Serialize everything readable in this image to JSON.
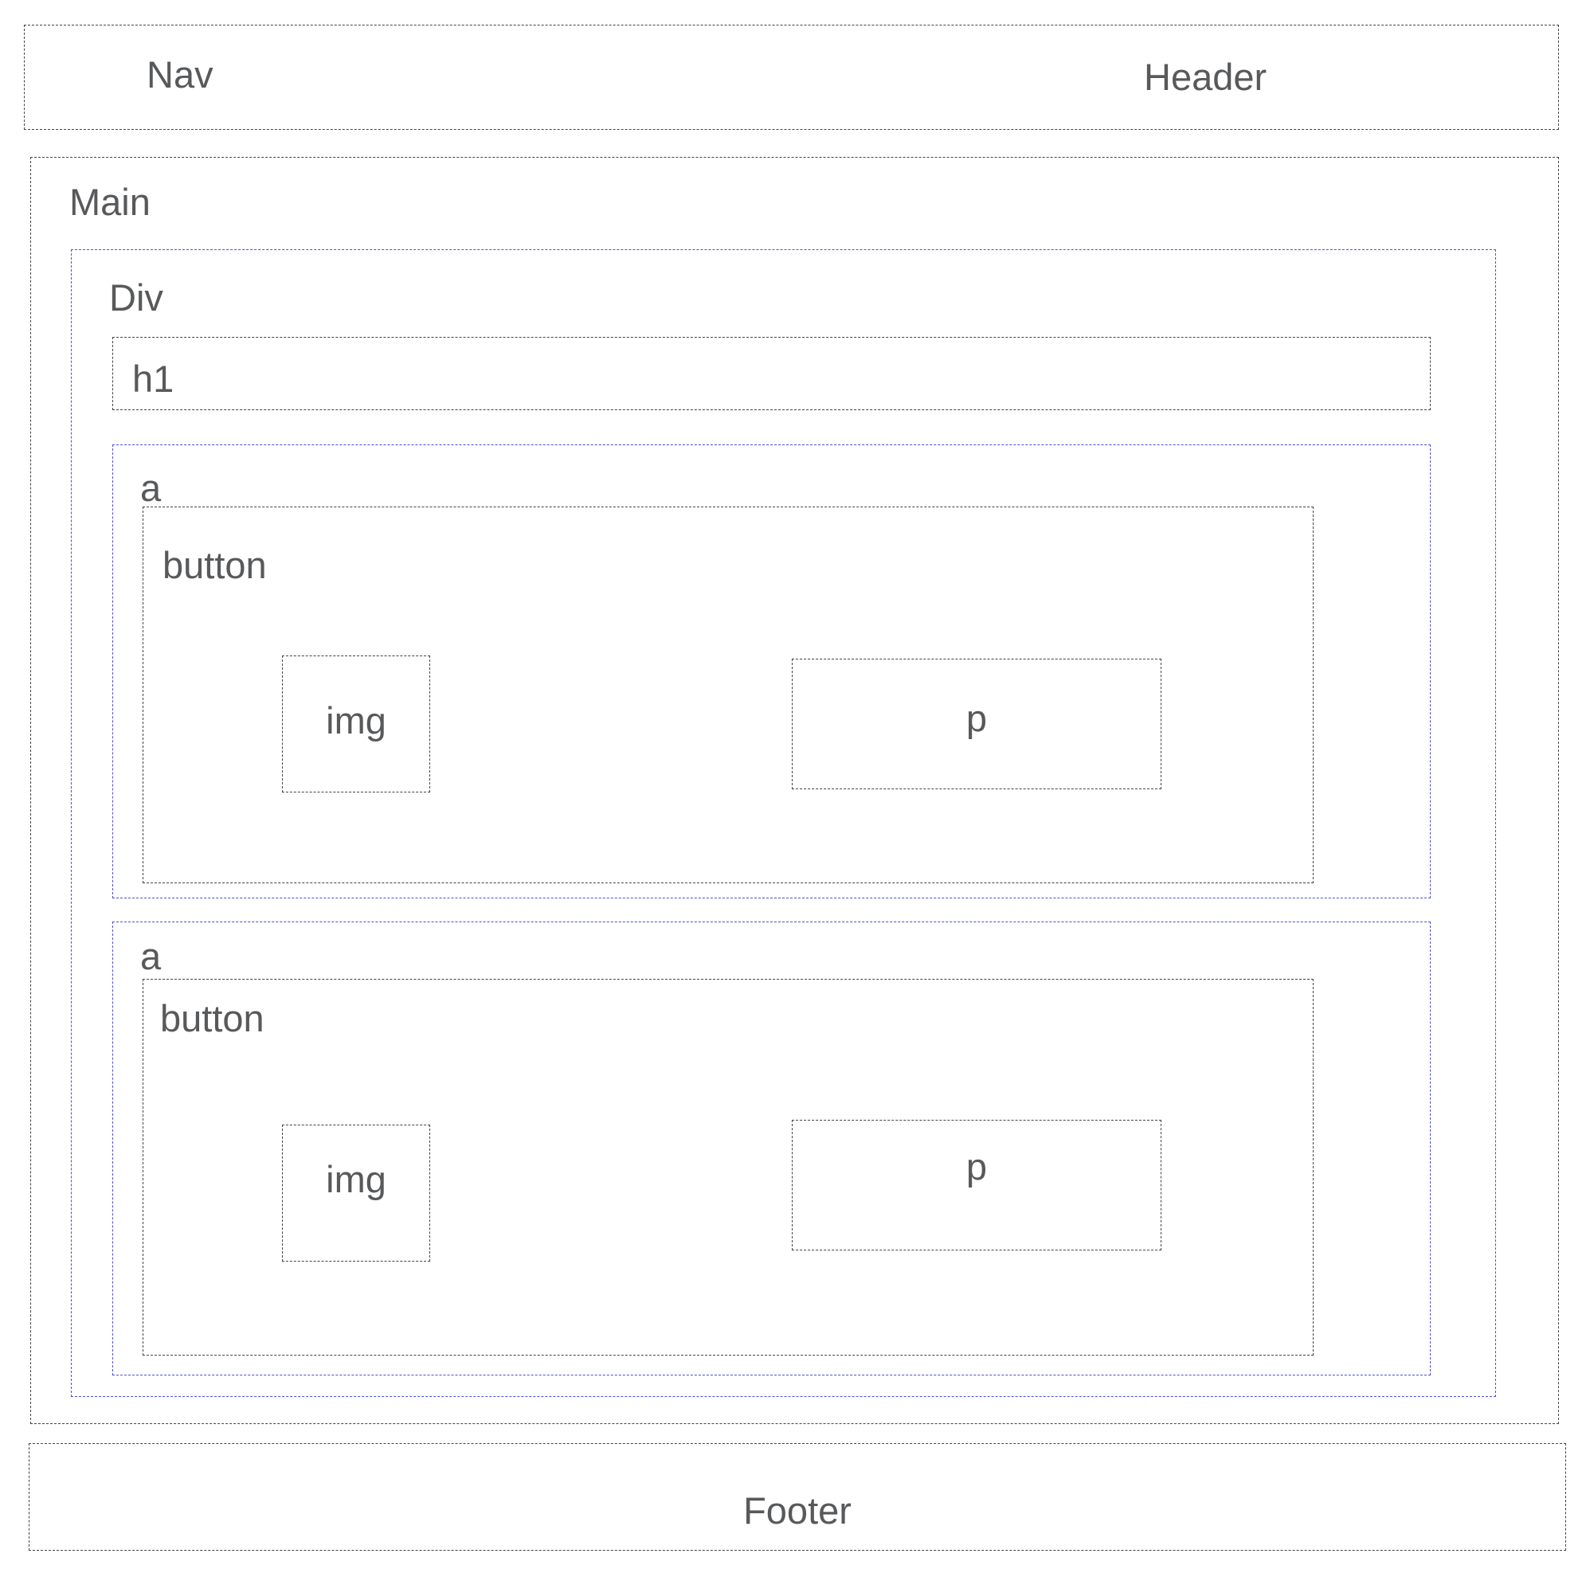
{
  "header": {
    "nav_label": "Nav",
    "header_label": "Header"
  },
  "main": {
    "label": "Main",
    "div": {
      "label": "Div",
      "h1_label": "h1",
      "anchors": [
        {
          "label": "a",
          "button": {
            "label": "button",
            "img_label": "img",
            "p_label": "p"
          }
        },
        {
          "label": "a",
          "button": {
            "label": "button",
            "img_label": "img",
            "p_label": "p"
          }
        }
      ]
    }
  },
  "footer": {
    "label": "Footer"
  },
  "colors": {
    "box_border": "#444444",
    "container_border": "#4a4fe0",
    "text": "#58595b"
  }
}
